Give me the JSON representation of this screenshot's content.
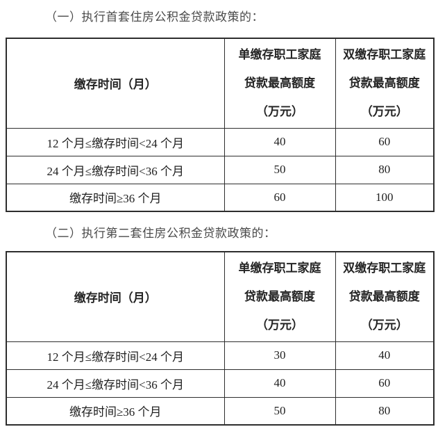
{
  "colors": {
    "page_background": "#ffffff",
    "heading_text": "#4a4a4a",
    "table_text": "#1f1f1f",
    "table_border": "#2d2d2d"
  },
  "sections": [
    {
      "heading": "（一）执行首套住房公积金贷款政策的：",
      "table": {
        "header": {
          "time_label": "缴存时间（月）",
          "single_lines": [
            "单缴存职工家庭",
            "贷款最高额度",
            "（万元）"
          ],
          "double_lines": [
            "双缴存职工家庭",
            "贷款最高额度",
            "（万元）"
          ]
        },
        "rows": [
          {
            "time": "12 个月≤缴存时间<24 个月",
            "single": "40",
            "double": "60"
          },
          {
            "time": "24 个月≤缴存时间<36 个月",
            "single": "50",
            "double": "80"
          },
          {
            "time": "缴存时间≥36 个月",
            "single": "60",
            "double": "100"
          }
        ]
      }
    },
    {
      "heading": "（二）执行第二套住房公积金贷款政策的：",
      "table": {
        "header": {
          "time_label": "缴存时间（月）",
          "single_lines": [
            "单缴存职工家庭",
            "贷款最高额度",
            "（万元）"
          ],
          "double_lines": [
            "双缴存职工家庭",
            "贷款最高额度",
            "（万元）"
          ]
        },
        "rows": [
          {
            "time": "12 个月≤缴存时间<24 个月",
            "single": "30",
            "double": "40"
          },
          {
            "time": "24 个月≤缴存时间<36 个月",
            "single": "40",
            "double": "60"
          },
          {
            "time": "缴存时间≥36 个月",
            "single": "50",
            "double": "80"
          }
        ]
      }
    }
  ]
}
